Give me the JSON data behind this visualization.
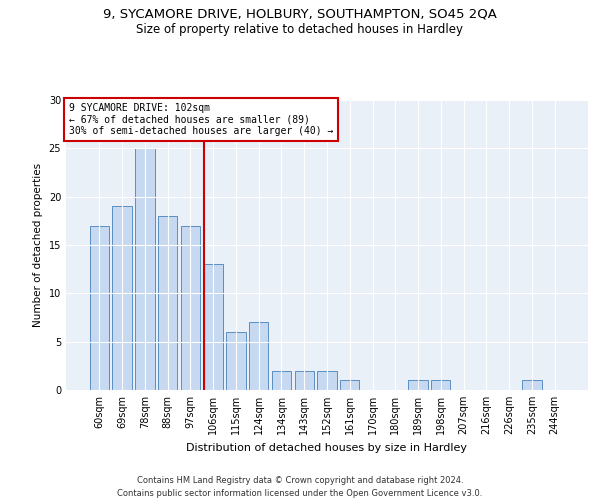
{
  "title": "9, SYCAMORE DRIVE, HOLBURY, SOUTHAMPTON, SO45 2QA",
  "subtitle": "Size of property relative to detached houses in Hardley",
  "xlabel": "Distribution of detached houses by size in Hardley",
  "ylabel": "Number of detached properties",
  "categories": [
    "60sqm",
    "69sqm",
    "78sqm",
    "88sqm",
    "97sqm",
    "106sqm",
    "115sqm",
    "124sqm",
    "134sqm",
    "143sqm",
    "152sqm",
    "161sqm",
    "170sqm",
    "180sqm",
    "189sqm",
    "198sqm",
    "207sqm",
    "216sqm",
    "226sqm",
    "235sqm",
    "244sqm"
  ],
  "values": [
    17,
    19,
    25,
    18,
    17,
    13,
    6,
    7,
    2,
    2,
    2,
    1,
    0,
    0,
    1,
    1,
    0,
    0,
    0,
    1,
    0
  ],
  "bar_color": "#c6d9f0",
  "bar_edge_color": "#5a8fc3",
  "annotation_line1": "9 SYCAMORE DRIVE: 102sqm",
  "annotation_line2": "← 67% of detached houses are smaller (89)",
  "annotation_line3": "30% of semi-detached houses are larger (40) →",
  "annotation_box_color": "#ffffff",
  "annotation_box_edge_color": "#cc0000",
  "ref_line_color": "#cc0000",
  "ylim": [
    0,
    30
  ],
  "yticks": [
    0,
    5,
    10,
    15,
    20,
    25,
    30
  ],
  "footer_line1": "Contains HM Land Registry data © Crown copyright and database right 2024.",
  "footer_line2": "Contains public sector information licensed under the Open Government Licence v3.0.",
  "bg_color": "#eaf0f8",
  "title_fontsize": 9.5,
  "subtitle_fontsize": 8.5
}
